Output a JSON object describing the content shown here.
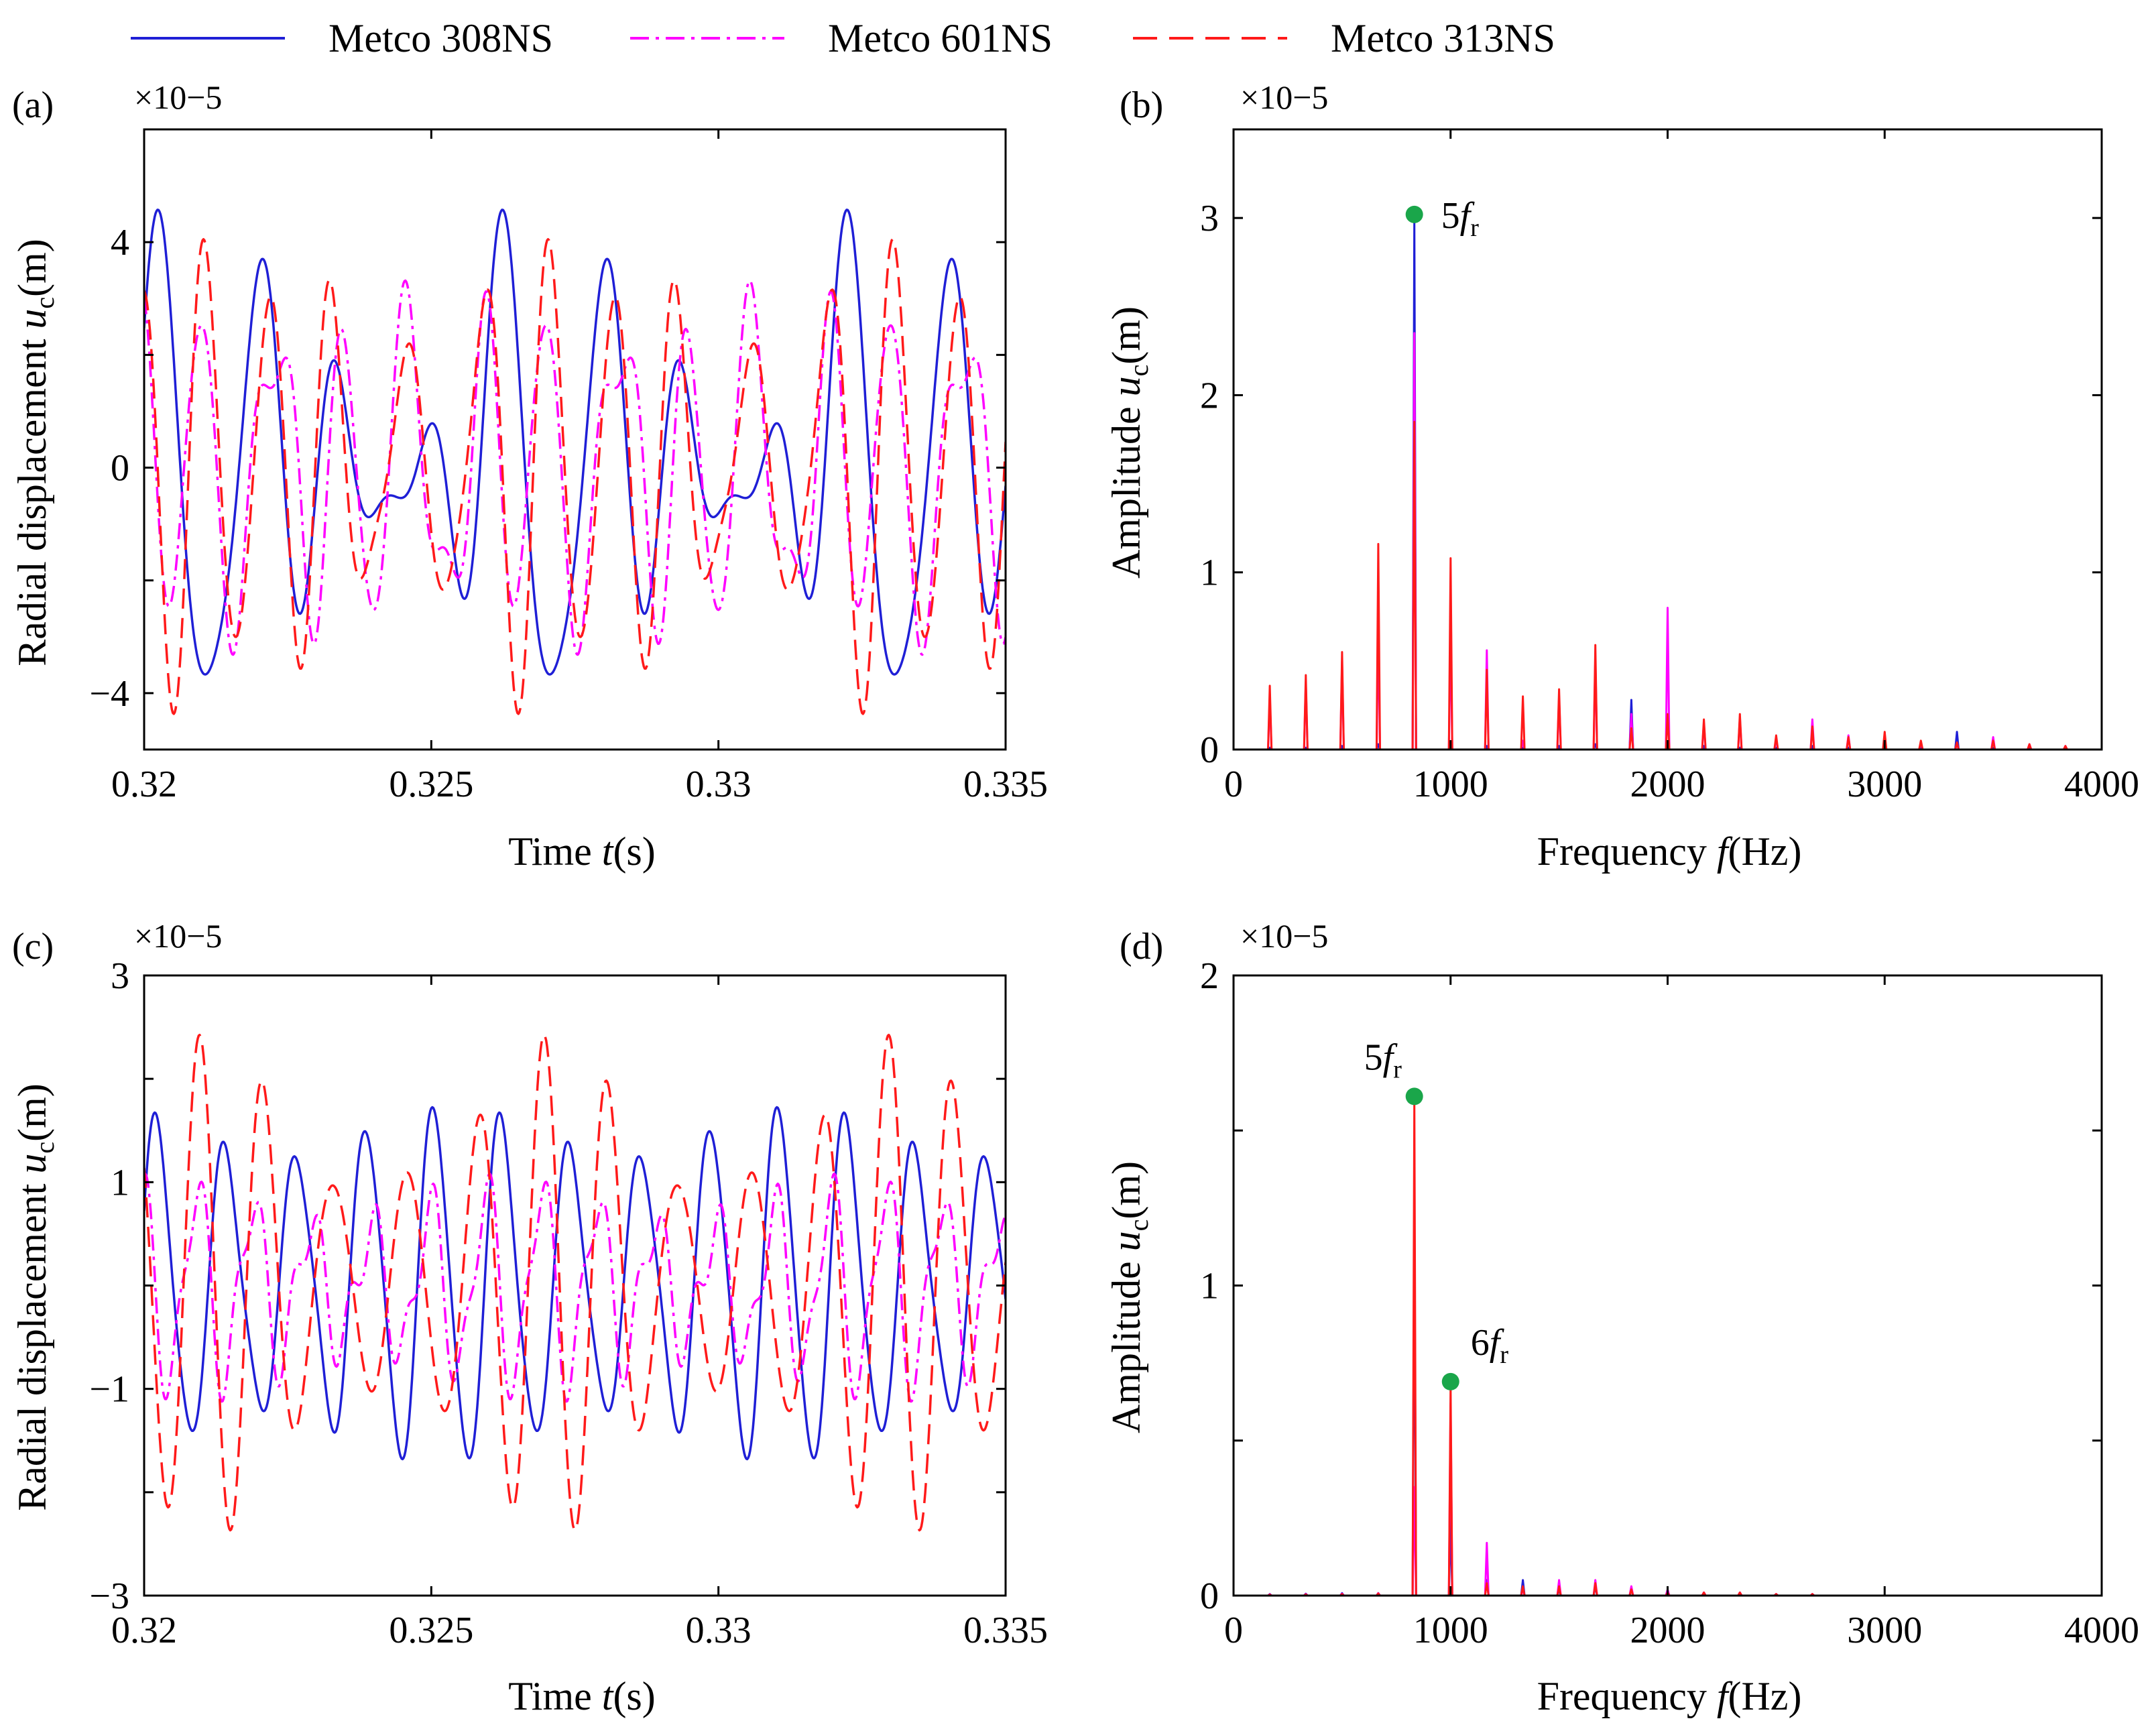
{
  "legend": {
    "entries": [
      {
        "name": "Metco 308NS",
        "color": "#1f1fd6",
        "style": "solid"
      },
      {
        "name": "Metco 601NS",
        "color": "#ff00ff",
        "style": "dashdot"
      },
      {
        "name": "Metco 313NS",
        "color": "#ff1a1a",
        "style": "dashed"
      }
    ]
  },
  "chart_data": [
    {
      "panel": "(a)",
      "type": "line",
      "xlabel": "Time t(s)",
      "ylabel": "Radial displacement u_c(m)",
      "exponent": "×10−5",
      "xlim": [
        0.32,
        0.335
      ],
      "ylim": [
        -5.0,
        6.0
      ],
      "xticks": [
        0.32,
        0.325,
        0.33,
        0.335
      ],
      "xtick_labels": [
        "0.32",
        "0.325",
        "0.33",
        "0.335"
      ],
      "yticks": [
        -4,
        -2,
        0,
        2,
        4
      ],
      "ytick_labels": [
        "−4",
        "",
        "0",
        "",
        "4"
      ],
      "series": [
        {
          "name": "Metco 308NS",
          "period": 0.006,
          "offset": 0,
          "components": [
            [
              4,
              2.2,
              0.0
            ],
            [
              3,
              1.5,
              1.2
            ],
            [
              6,
              0.9,
              0.4
            ],
            [
              2,
              0.8,
              2.0
            ]
          ]
        },
        {
          "name": "Metco 601NS",
          "period": 0.006,
          "offset": 0,
          "components": [
            [
              5,
              2.3,
              2.4
            ],
            [
              7,
              1.0,
              1.0
            ],
            [
              3,
              0.7,
              0.3
            ],
            [
              9,
              0.5,
              2.2
            ]
          ]
        },
        {
          "name": "Metco 313NS",
          "period": 0.006,
          "offset": 0,
          "components": [
            [
              5,
              2.6,
              2.6
            ],
            [
              6,
              1.4,
              0.9
            ],
            [
              4,
              0.6,
              1.8
            ],
            [
              8,
              0.6,
              0.2
            ]
          ]
        }
      ]
    },
    {
      "panel": "(b)",
      "type": "line",
      "xlabel": "Frequency f(Hz)",
      "ylabel": "Amplitude u_c(m)",
      "exponent": "×10−5",
      "xlim": [
        0,
        4000
      ],
      "ylim": [
        0,
        3.5
      ],
      "xticks": [
        0,
        1000,
        2000,
        3000,
        4000
      ],
      "xtick_labels": [
        "0",
        "1000",
        "2000",
        "3000",
        "4000"
      ],
      "yticks": [
        0,
        1,
        2,
        3
      ],
      "ytick_labels": [
        "0",
        "1",
        "2",
        "3"
      ],
      "peak_freqs": [
        167,
        333,
        500,
        667,
        833,
        1000,
        1167,
        1333,
        1500,
        1667,
        1833,
        2000,
        2167,
        2333,
        2500,
        2667,
        2833,
        3000,
        3167,
        3333,
        3500,
        3667,
        3833
      ],
      "series": [
        {
          "name": "Metco 308NS",
          "values": [
            0.01,
            0.01,
            0.02,
            0.03,
            3.0,
            0.02,
            0.02,
            0.01,
            0.02,
            0.03,
            0.28,
            0.02,
            0.02,
            0.01,
            0.01,
            0.02,
            0.01,
            0.01,
            0.01,
            0.1,
            0.01,
            0.01,
            0.01
          ]
        },
        {
          "name": "Metco 601NS",
          "values": [
            0.3,
            0.38,
            0.5,
            0.7,
            2.35,
            0.68,
            0.56,
            0.05,
            0.3,
            0.52,
            0.2,
            0.8,
            0.15,
            0.18,
            0.06,
            0.17,
            0.08,
            0.06,
            0.04,
            0.03,
            0.07,
            0.03,
            0.02
          ]
        },
        {
          "name": "Metco 313NS",
          "values": [
            0.36,
            0.42,
            0.55,
            1.16,
            1.85,
            1.08,
            0.45,
            0.3,
            0.34,
            0.59,
            0.12,
            0.2,
            0.17,
            0.2,
            0.08,
            0.13,
            0.07,
            0.1,
            0.05,
            0.04,
            0.05,
            0.03,
            0.02
          ]
        }
      ],
      "annotations": [
        {
          "label": "5f",
          "sub": "r",
          "x": 833,
          "y": 3.02
        }
      ]
    },
    {
      "panel": "(c)",
      "type": "line",
      "xlabel": "Time t(s)",
      "ylabel": "Radial displacement u_c(m)",
      "exponent": "×10−5",
      "xlim": [
        0.32,
        0.335
      ],
      "ylim": [
        -3.0,
        3.0
      ],
      "xticks": [
        0.32,
        0.325,
        0.33,
        0.335
      ],
      "xtick_labels": [
        "0.32",
        "0.325",
        "0.33",
        "0.335"
      ],
      "yticks": [
        -3,
        -2,
        -1,
        0,
        1,
        2,
        3
      ],
      "ytick_labels": [
        "−3",
        "",
        "−1",
        "",
        "1",
        "",
        "3"
      ],
      "series": [
        {
          "name": "Metco 308NS",
          "period": 0.006,
          "offset": 0,
          "components": [
            [
              5,
              1.45,
              0.3
            ],
            [
              6,
              0.25,
              1.1
            ],
            [
              10,
              0.15,
              0.5
            ]
          ]
        },
        {
          "name": "Metco 601NS",
          "period": 0.006,
          "offset": 0,
          "components": [
            [
              6,
              0.75,
              2.0
            ],
            [
              12,
              0.3,
              0.7
            ],
            [
              7,
              0.2,
              1.4
            ]
          ]
        },
        {
          "name": "Metco 313NS",
          "period": 0.006,
          "offset": 0,
          "components": [
            [
              5,
              1.5,
              2.9
            ],
            [
              6,
              0.7,
              1.8
            ],
            [
              7,
              0.25,
              0.4
            ]
          ]
        }
      ]
    },
    {
      "panel": "(d)",
      "type": "line",
      "xlabel": "Frequency f(Hz)",
      "ylabel": "Amplitude u_c(m)",
      "exponent": "×10−5",
      "xlim": [
        0,
        4000
      ],
      "ylim": [
        0,
        2.0
      ],
      "xticks": [
        0,
        1000,
        2000,
        3000,
        4000
      ],
      "xtick_labels": [
        "0",
        "1000",
        "2000",
        "3000",
        "4000"
      ],
      "yticks": [
        0,
        0.5,
        1,
        1.5,
        2
      ],
      "ytick_labels": [
        "0",
        "",
        "1",
        "",
        "2"
      ],
      "peak_freqs": [
        167,
        333,
        500,
        667,
        833,
        1000,
        1167,
        1333,
        1500,
        1667,
        1833,
        2000,
        2167,
        2333,
        2500,
        2667
      ],
      "series": [
        {
          "name": "Metco 308NS",
          "values": [
            0.005,
            0.006,
            0.008,
            0.008,
            1.25,
            0.25,
            0.05,
            0.05,
            0.02,
            0.03,
            0.02,
            0.01,
            0.01,
            0.01,
            0.005,
            0.005
          ]
        },
        {
          "name": "Metco 601NS",
          "values": [
            0.004,
            0.005,
            0.006,
            0.008,
            0.35,
            0.62,
            0.17,
            0.02,
            0.05,
            0.05,
            0.03,
            0.02,
            0.01,
            0.01,
            0.005,
            0.005
          ]
        },
        {
          "name": "Metco 313NS",
          "values": [
            0.003,
            0.004,
            0.005,
            0.007,
            1.6,
            0.68,
            0.04,
            0.03,
            0.03,
            0.04,
            0.02,
            0.01,
            0.01,
            0.01,
            0.005,
            0.005
          ]
        }
      ],
      "annotations": [
        {
          "label": "5f",
          "sub": "r",
          "x": 833,
          "y": 1.61
        },
        {
          "label": "6f",
          "sub": "r",
          "x": 1000,
          "y": 0.69
        }
      ]
    }
  ]
}
